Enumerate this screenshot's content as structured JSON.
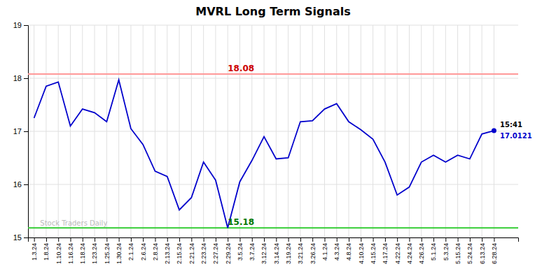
{
  "chart_data": {
    "type": "line",
    "title": "MVRL Long Term Signals",
    "categories": [
      "1.3.24",
      "1.8.24",
      "1.10.24",
      "1.16.24",
      "1.18.24",
      "1.23.24",
      "1.25.24",
      "1.30.24",
      "2.1.24",
      "2.6.24",
      "2.8.24",
      "2.13.24",
      "2.15.24",
      "2.21.24",
      "2.23.24",
      "2.27.24",
      "2.29.24",
      "3.5.24",
      "3.7.24",
      "3.12.24",
      "3.14.24",
      "3.19.24",
      "3.21.24",
      "3.26.24",
      "4.1.24",
      "4.3.24",
      "4.8.24",
      "4.10.24",
      "4.15.24",
      "4.17.24",
      "4.22.24",
      "4.24.24",
      "4.26.24",
      "5.1.24",
      "5.3.24",
      "5.15.24",
      "5.24.24",
      "6.13.24",
      "6.28.24"
    ],
    "series": [
      {
        "color": "#0000cc",
        "values": [
          17.25,
          17.85,
          17.93,
          17.1,
          17.42,
          17.35,
          17.18,
          17.97,
          17.05,
          16.75,
          16.25,
          16.15,
          15.52,
          15.75,
          16.42,
          16.08,
          15.18,
          16.05,
          16.45,
          16.9,
          16.48,
          16.5,
          17.18,
          17.2,
          17.42,
          17.52,
          17.18,
          17.03,
          16.85,
          16.42,
          15.8,
          15.95,
          16.42,
          16.55,
          16.42,
          16.55,
          16.48,
          16.95,
          17.0121
        ]
      }
    ],
    "reference_lines": [
      {
        "value": 18.08,
        "label": "18.08",
        "color": "#ff9999",
        "label_color": "#cc0000"
      },
      {
        "value": 15.18,
        "label": "15.18",
        "color": "#33cc33",
        "label_color": "#007700"
      }
    ],
    "watermark": "Stock Traders Daily",
    "last_point": {
      "time_label": "15:41",
      "value_label": "17.0121",
      "color": "#0000cc",
      "time_label_color": "#000000",
      "value_label_color": "#0000cc"
    },
    "ylim": [
      15,
      19
    ],
    "yticks": [
      15,
      16,
      17,
      18,
      19
    ],
    "grid": true
  }
}
